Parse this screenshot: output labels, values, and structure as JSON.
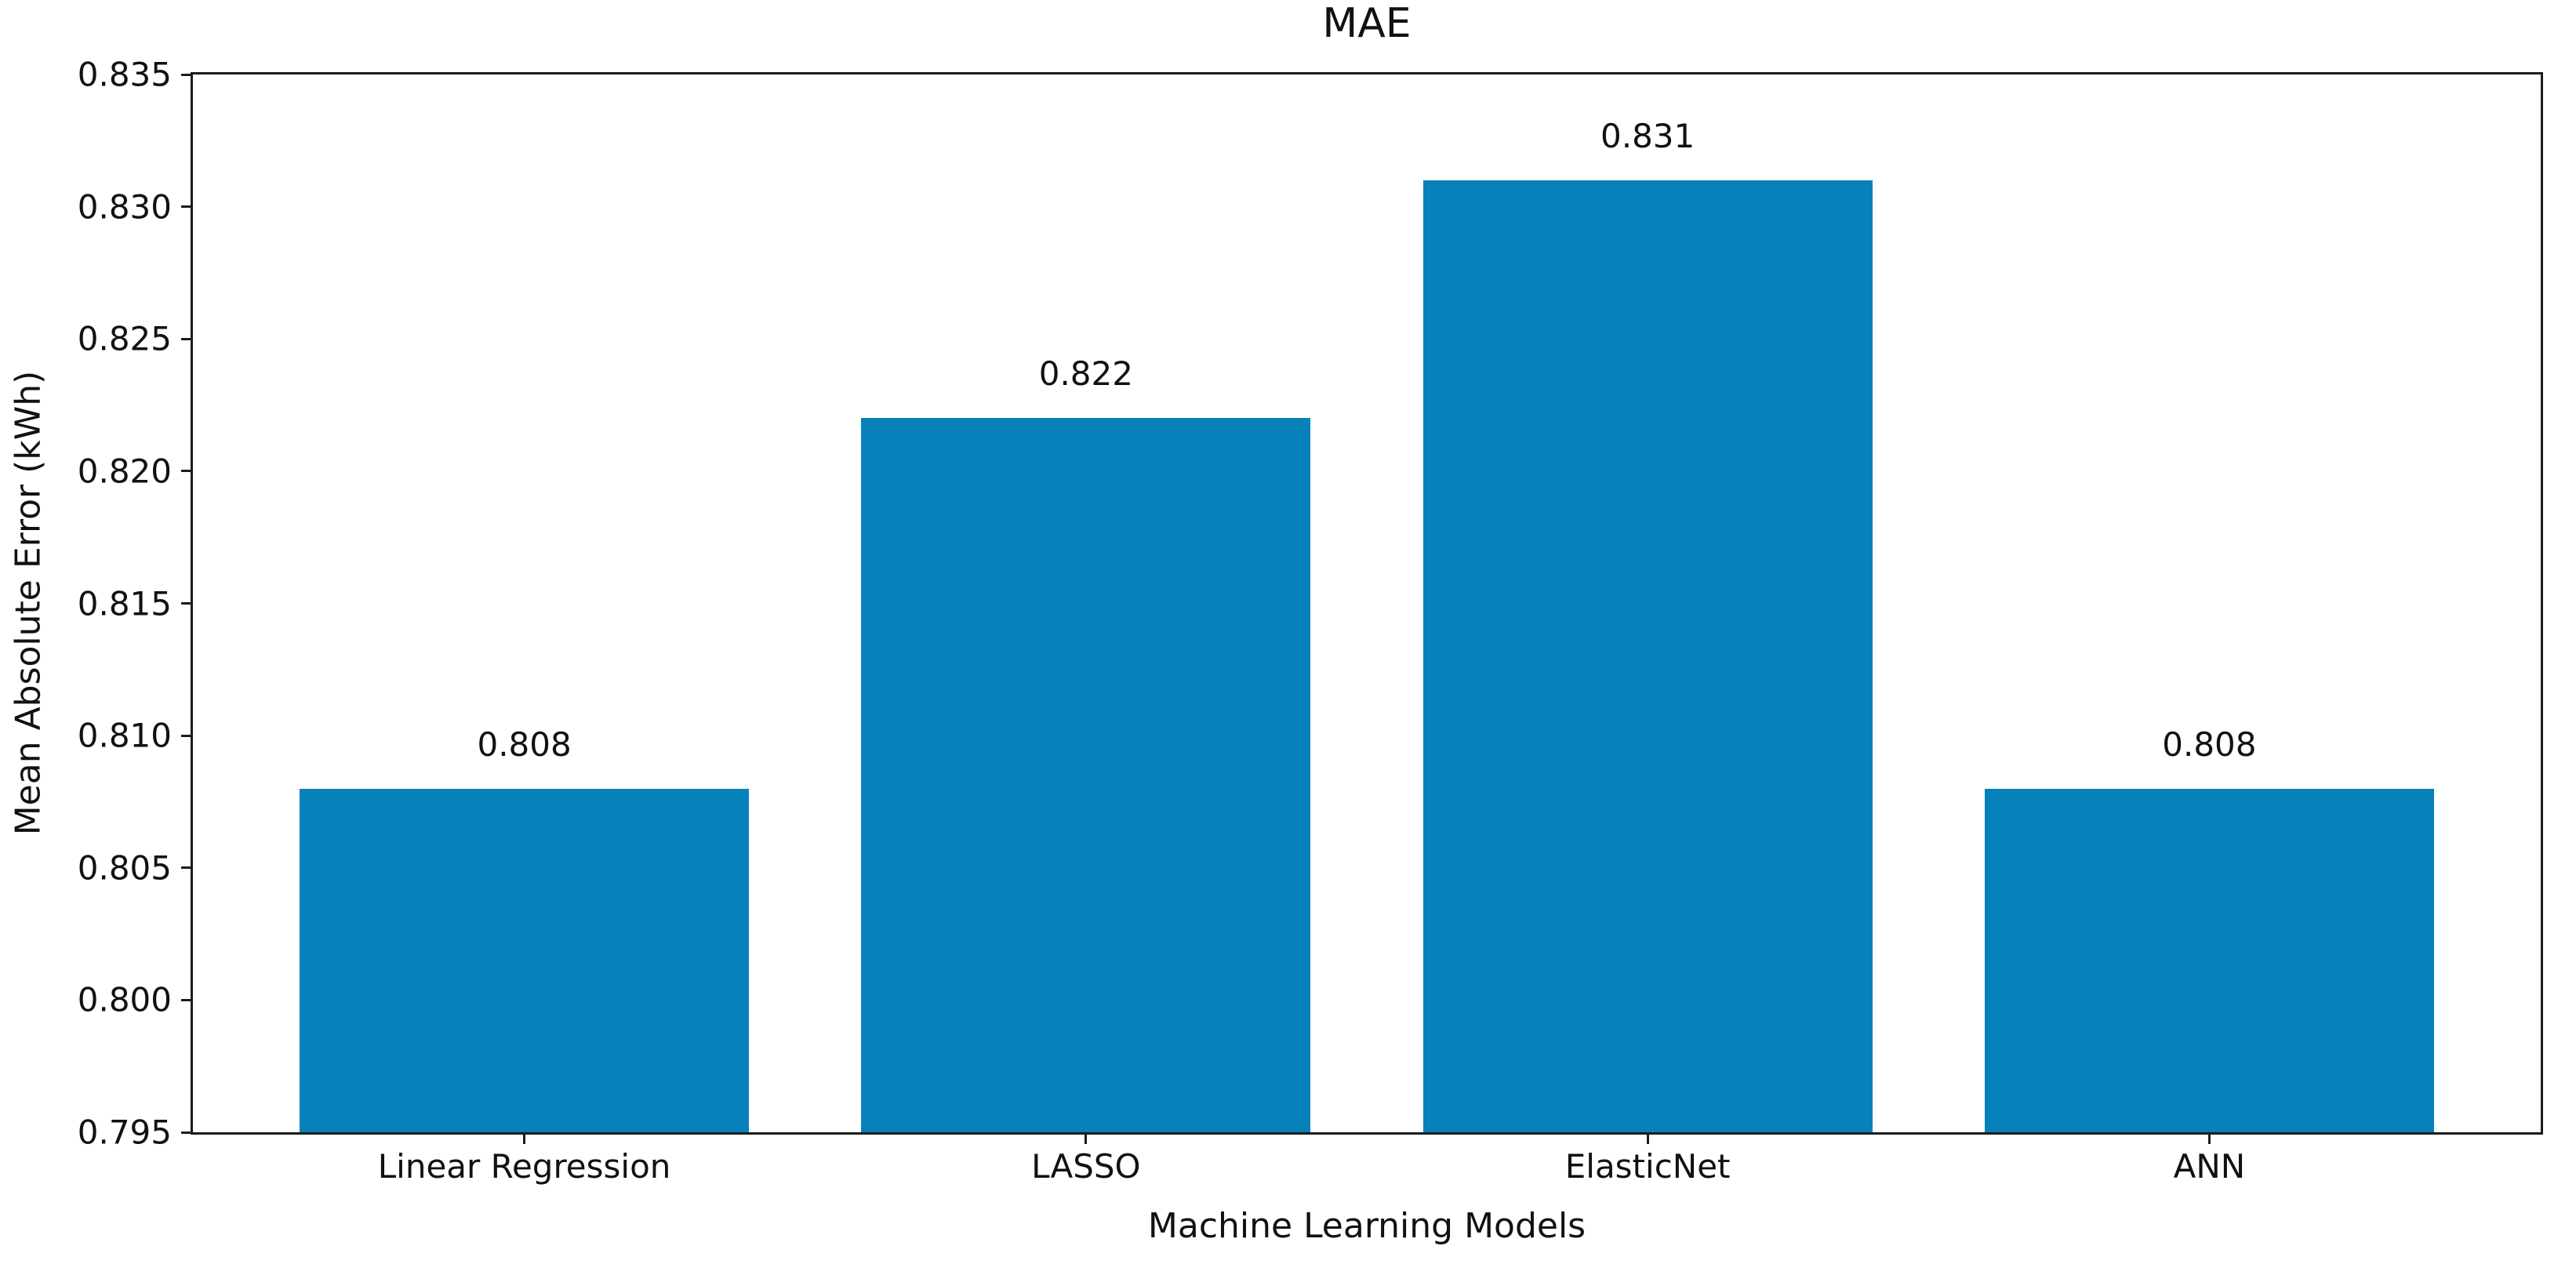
{
  "chart_data": {
    "type": "bar",
    "title": "MAE",
    "xlabel": "Machine Learning Models",
    "ylabel": "Mean Absolute Error (kWh)",
    "categories": [
      "Linear Regression",
      "LASSO",
      "ElasticNet",
      "ANN"
    ],
    "values": [
      0.808,
      0.822,
      0.831,
      0.808
    ],
    "bar_labels": [
      "0.808",
      "0.822",
      "0.831",
      "0.808"
    ],
    "ylim": [
      0.795,
      0.835
    ],
    "ytick_labels": [
      "0.795",
      "0.800",
      "0.805",
      "0.810",
      "0.815",
      "0.820",
      "0.825",
      "0.830",
      "0.835"
    ],
    "bar_color": "#0681ba",
    "axis_color": "#1c1c1c",
    "grid": false,
    "legend_position": "none"
  }
}
